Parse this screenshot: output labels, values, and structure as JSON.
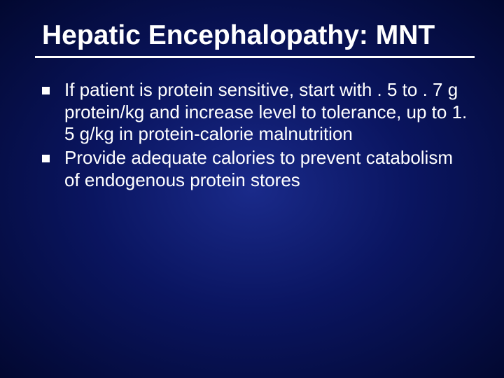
{
  "slide": {
    "title": "Hepatic Encephalopathy: MNT",
    "title_fontsize": 39,
    "title_color": "#ffffff",
    "underline_color": "#ffffff",
    "bullets": [
      "If patient is protein sensitive, start with . 5 to . 7 g protein/kg and increase level to tolerance, up to 1. 5 g/kg in protein-calorie malnutrition",
      "Provide adequate calories to prevent catabolism of endogenous protein stores"
    ],
    "bullet_fontsize": 26,
    "bullet_marker": "square",
    "bullet_marker_color": "#ffffff",
    "text_color": "#ffffff",
    "background": {
      "type": "radial-gradient",
      "center_color": "#1a2a8a",
      "mid_color": "#0a1560",
      "edge_color": "#020830"
    },
    "font_family": "Verdana"
  }
}
